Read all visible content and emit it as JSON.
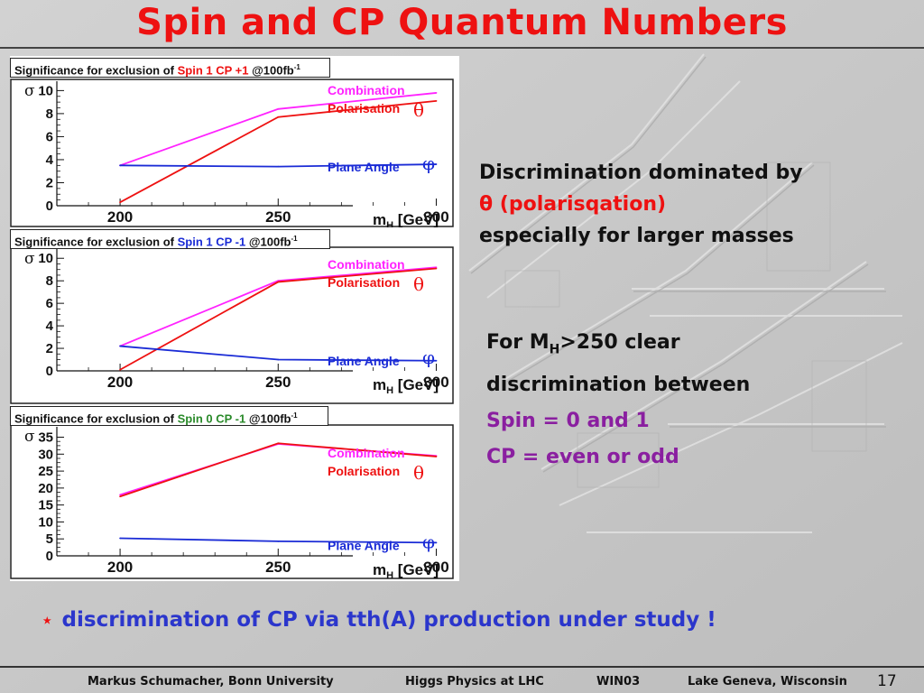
{
  "slide": {
    "title": "Spin and CP Quantum Numbers",
    "text_block_1": {
      "line1": "Discrimination dominated by",
      "theta": "θ",
      "line2_rest": " (polarisqation)",
      "line3": "especially for larger masses"
    },
    "text_block_2": {
      "line1_pre": "For M",
      "line1_sub": "H",
      "line1_post": ">250 clear",
      "line2": "discrimination between",
      "line3": "Spin = 0 and 1",
      "line4": "CP = even or odd"
    },
    "bottom_note": {
      "star": "⋆",
      "text": "discrimination of CP via tth(A) production under study !"
    },
    "footer": {
      "author": "Markus Schumacher,  Bonn University",
      "talk": "Higgs Physics at LHC",
      "conference": "WIN03",
      "location": "Lake Geneva, Wisconsin",
      "page": "17"
    }
  },
  "colors": {
    "title": "#ee1111",
    "combination": "#ff22ff",
    "polarisation": "#ee1111",
    "plane_angle": "#1a2bd6",
    "spin1_label": "#ee1111",
    "spin0_label": "#2a8a2a",
    "bottom_note": "#2b36cc",
    "purple_text": "#8a1fa0"
  },
  "chart_data": [
    {
      "type": "line",
      "title_pre": "Significance for exclusion of ",
      "title_hl": "Spin 1 CP +1",
      "title_hl_color": "#ee1111",
      "title_post": " @100fb",
      "title_sup": "-1",
      "ylabel": "σ",
      "xlabel_pre": "m",
      "xlabel_sub": "H",
      "xlabel_post": " [GeV]",
      "x": [
        200,
        250,
        300
      ],
      "xticks": [
        200,
        250,
        300
      ],
      "yticks": [
        0,
        2,
        4,
        6,
        8,
        10
      ],
      "ylim": [
        0,
        10.5
      ],
      "xlim": [
        180,
        305
      ],
      "series": [
        {
          "name": "Combination",
          "values": [
            3.5,
            8.4,
            9.8
          ],
          "color": "#ff22ff",
          "symbol": ""
        },
        {
          "name": "Polarisation",
          "values": [
            0.3,
            7.7,
            9.1
          ],
          "color": "#ee1111",
          "symbol": "θ"
        },
        {
          "name": "Plane Angle",
          "values": [
            3.5,
            3.4,
            3.6
          ],
          "color": "#1a2bd6",
          "symbol": "φ"
        }
      ]
    },
    {
      "type": "line",
      "title_pre": "Significance for exclusion of ",
      "title_hl": "Spin 1 CP -1",
      "title_hl_color": "#1a2bd6",
      "title_post": " @100fb",
      "title_sup": "-1",
      "ylabel": "σ",
      "xlabel_pre": "m",
      "xlabel_sub": "H",
      "xlabel_post": " [GeV]",
      "x": [
        200,
        250,
        300
      ],
      "xticks": [
        200,
        250,
        300
      ],
      "yticks": [
        0,
        2,
        4,
        6,
        8,
        10
      ],
      "ylim": [
        0,
        10.5
      ],
      "xlim": [
        180,
        305
      ],
      "series": [
        {
          "name": "Combination",
          "values": [
            2.2,
            8.0,
            9.2
          ],
          "color": "#ff22ff",
          "symbol": ""
        },
        {
          "name": "Polarisation",
          "values": [
            0.1,
            7.9,
            9.1
          ],
          "color": "#ee1111",
          "symbol": "θ"
        },
        {
          "name": "Plane Angle",
          "values": [
            2.2,
            1.0,
            0.9
          ],
          "color": "#1a2bd6",
          "symbol": "φ"
        }
      ]
    },
    {
      "type": "line",
      "title_pre": "Significance for exclusion of ",
      "title_hl": "Spin 0 CP -1",
      "title_hl_color": "#2a8a2a",
      "title_post": "  @100fb",
      "title_sup": "-1",
      "ylabel": "σ",
      "xlabel_pre": "m",
      "xlabel_sub": "H",
      "xlabel_post": " [GeV]",
      "x": [
        200,
        250,
        300
      ],
      "xticks": [
        200,
        250,
        300
      ],
      "yticks": [
        0,
        5,
        10,
        15,
        20,
        25,
        30,
        35
      ],
      "ylim": [
        0,
        37
      ],
      "xlim": [
        180,
        305
      ],
      "series": [
        {
          "name": "Combination",
          "values": [
            18.0,
            33.0,
            29.5
          ],
          "color": "#ff22ff",
          "symbol": ""
        },
        {
          "name": "Polarisation",
          "values": [
            17.5,
            33.2,
            29.3
          ],
          "color": "#ee1111",
          "symbol": "θ"
        },
        {
          "name": "Plane Angle",
          "values": [
            5.2,
            4.3,
            3.9
          ],
          "color": "#1a2bd6",
          "symbol": "φ"
        }
      ]
    }
  ]
}
